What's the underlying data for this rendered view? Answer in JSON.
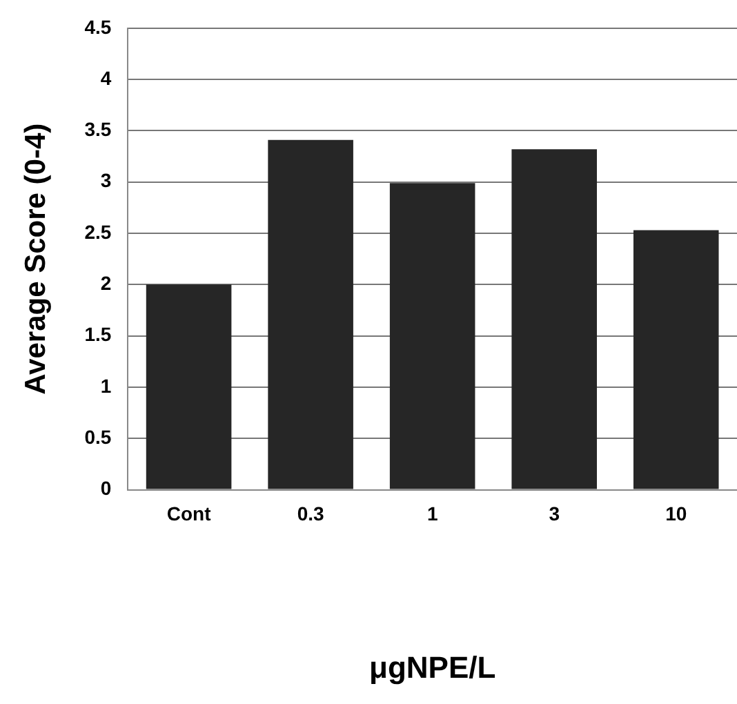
{
  "chart_data": {
    "type": "bar",
    "categories": [
      "Cont",
      "0.3",
      "1",
      "3",
      "10"
    ],
    "values": [
      2.0,
      3.41,
      2.99,
      3.32,
      2.53
    ],
    "color": "#262626",
    "xlabel": "μgNPE/L",
    "ylabel": "Average Score (0-4)",
    "ylim": [
      0,
      4.5
    ],
    "yticks": [
      0,
      0.5,
      1,
      1.5,
      2,
      2.5,
      3,
      3.5,
      4,
      4.5
    ],
    "grid": "y",
    "legend": false
  }
}
